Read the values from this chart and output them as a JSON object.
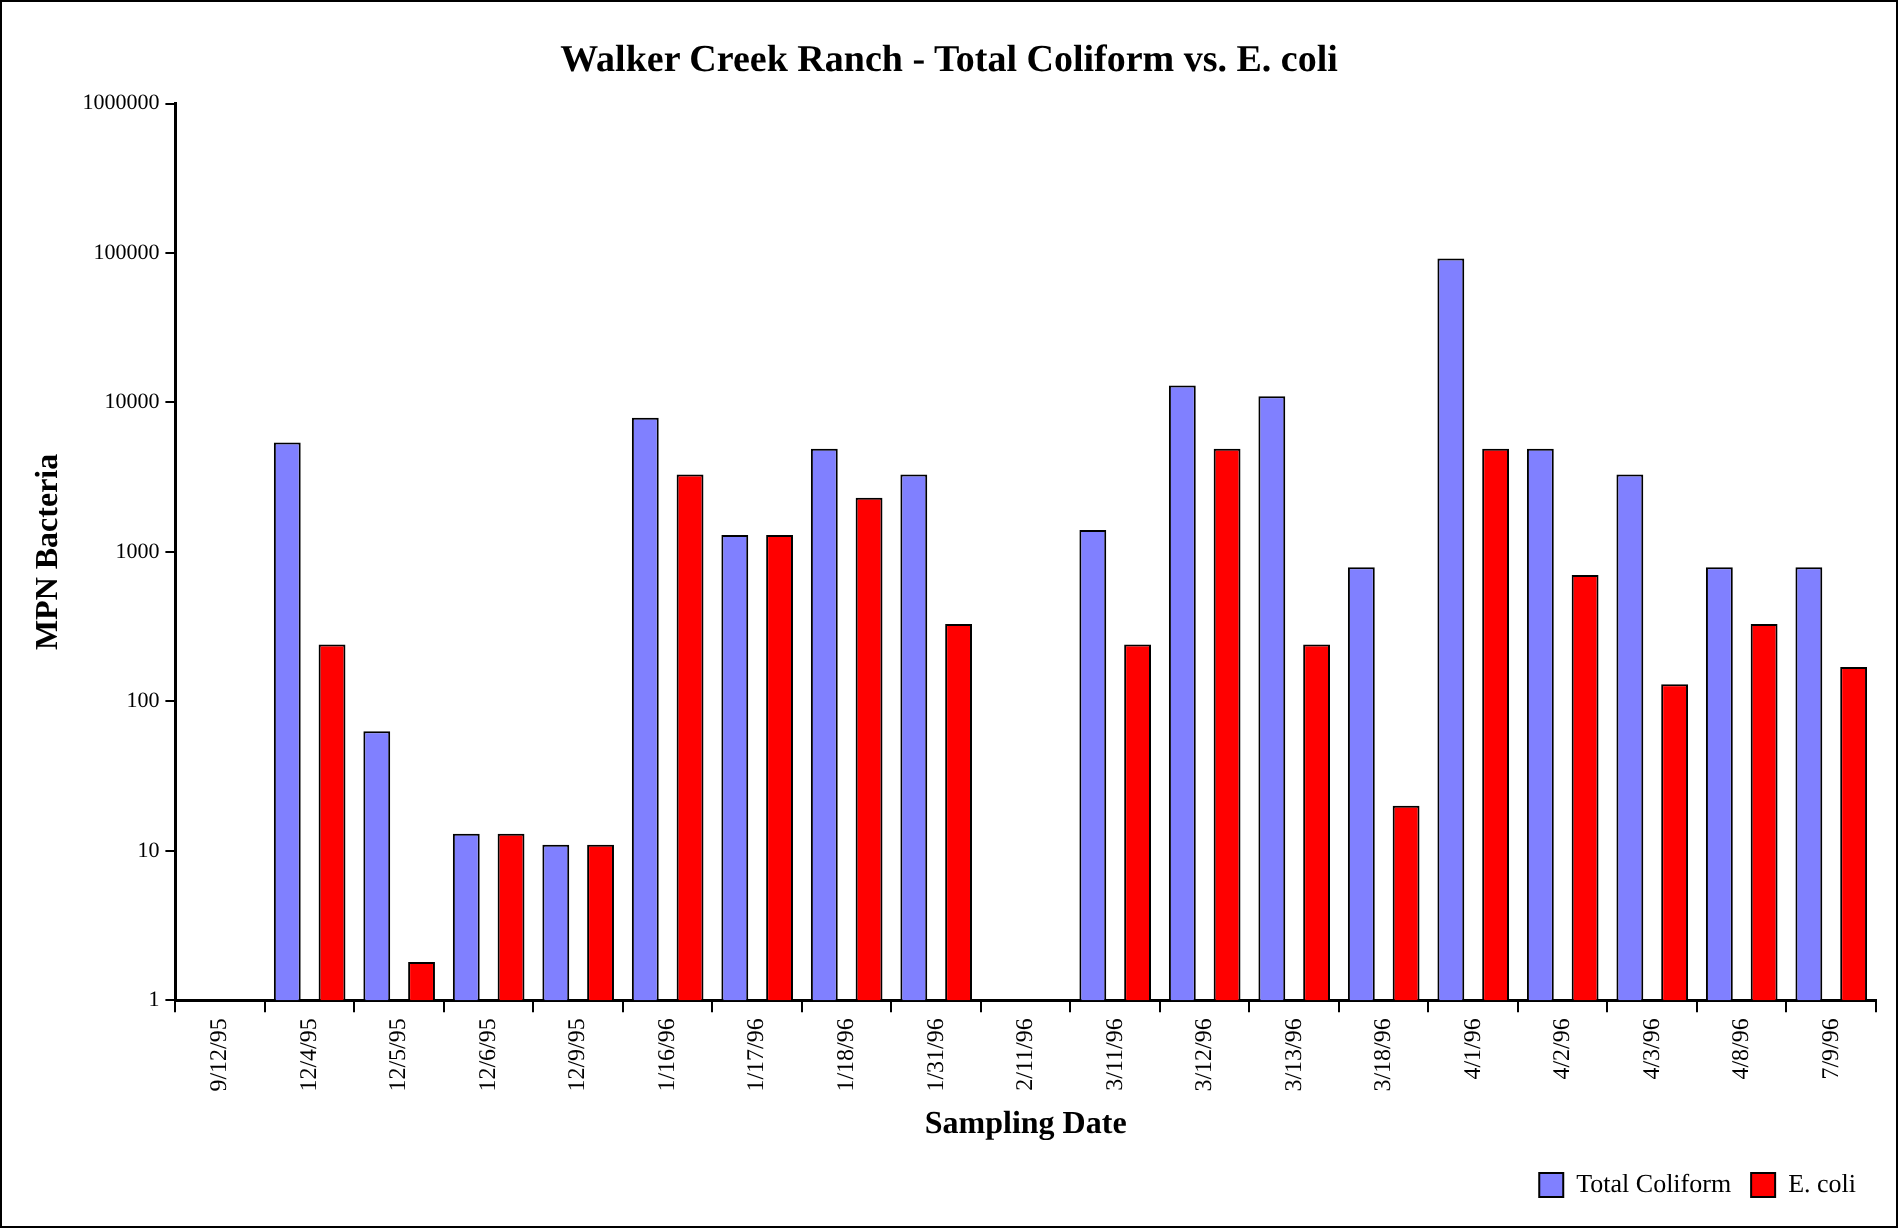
{
  "chart_data": {
    "type": "bar",
    "title": "Walker Creek Ranch - Total Coliform vs. E. coli",
    "xlabel": "Sampling Date",
    "ylabel": "MPN Bacteria",
    "categories": [
      "9/12/95",
      "12/4/95",
      "12/5/95",
      "12/6/95",
      "12/9/95",
      "1/16/96",
      "1/17/96",
      "1/18/96",
      "1/31/96",
      "2/11/96",
      "3/11/96",
      "3/12/96",
      "3/13/96",
      "3/18/96",
      "4/1/96",
      "4/2/96",
      "4/3/96",
      "4/8/96",
      "7/9/96"
    ],
    "series": [
      {
        "name": "Total Coliform",
        "color": "#8080ff",
        "values": [
          null,
          5400,
          63,
          13,
          11,
          7900,
          1300,
          4900,
          3300,
          null,
          1400,
          13000,
          11000,
          790,
          92000,
          4900,
          3300,
          790,
          790
        ]
      },
      {
        "name": "E. coli",
        "color": "#ff0000",
        "values": [
          null,
          240,
          1.8,
          13,
          11,
          3300,
          1300,
          2300,
          330,
          null,
          240,
          4900,
          240,
          20,
          4900,
          700,
          130,
          330,
          170
        ]
      }
    ],
    "log": true,
    "ylim": [
      1,
      1000000
    ],
    "yticks": [
      1,
      10,
      100,
      1000,
      10000,
      100000,
      1000000
    ],
    "grid": false,
    "legend": "bottom right"
  }
}
